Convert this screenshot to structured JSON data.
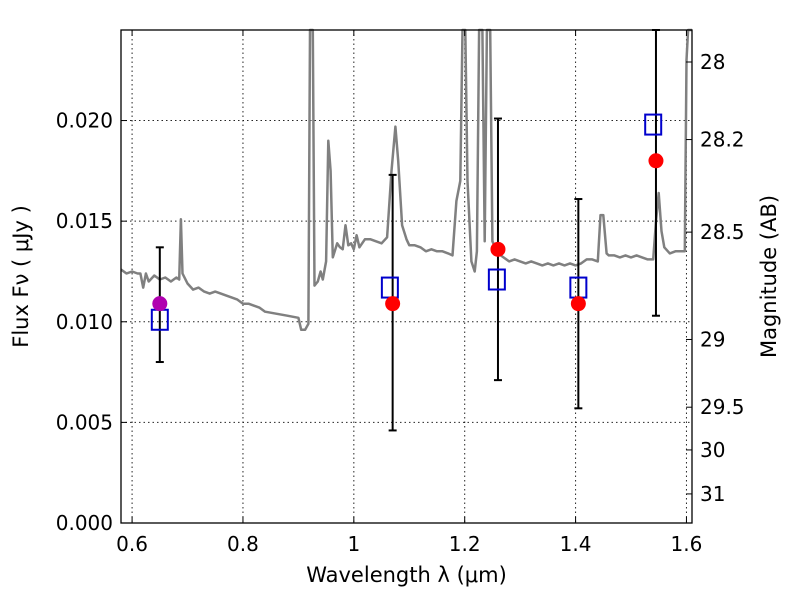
{
  "chart_data": {
    "type": "scatter",
    "title": "",
    "xlabel": "Wavelength  λ (μm)",
    "ylabel": "Flux  Fν  ( μJy )",
    "ylabel_right": "Magnitude (AB)",
    "xlim": [
      0.58,
      1.61
    ],
    "ylim": [
      0.0,
      0.0245
    ],
    "grid": true,
    "xticks": [
      0.6,
      0.8,
      1.0,
      1.2,
      1.4,
      1.6
    ],
    "xtick_labels": [
      "0.6",
      "0.8",
      "1",
      "1.2",
      "1.4",
      "1.6"
    ],
    "yticks": [
      0.0,
      0.005,
      0.01,
      0.015,
      0.02
    ],
    "ytick_labels": [
      "0.000",
      "0.005",
      "0.010",
      "0.015",
      "0.020"
    ],
    "right_ticks": [
      {
        "label": "28",
        "mag": 28.0
      },
      {
        "label": "28.2",
        "mag": 28.2
      },
      {
        "label": "28.5",
        "mag": 28.5
      },
      {
        "label": "29",
        "mag": 29.0
      },
      {
        "label": "29.5",
        "mag": 29.5
      },
      {
        "label": "30",
        "mag": 30.0
      },
      {
        "label": "31",
        "mag": 31.0
      }
    ],
    "series": [
      {
        "kind": "sed-model",
        "color": "#808080",
        "points": [
          [
            0.58,
            0.0126
          ],
          [
            0.59,
            0.0124
          ],
          [
            0.6,
            0.0125
          ],
          [
            0.61,
            0.0124
          ],
          [
            0.615,
            0.0124
          ],
          [
            0.62,
            0.0117
          ],
          [
            0.625,
            0.0124
          ],
          [
            0.63,
            0.012
          ],
          [
            0.64,
            0.0123
          ],
          [
            0.65,
            0.0121
          ],
          [
            0.66,
            0.0122
          ],
          [
            0.67,
            0.012
          ],
          [
            0.68,
            0.0122
          ],
          [
            0.685,
            0.0121
          ],
          [
            0.688,
            0.0151
          ],
          [
            0.691,
            0.0124
          ],
          [
            0.7,
            0.0119
          ],
          [
            0.71,
            0.0116
          ],
          [
            0.72,
            0.0117
          ],
          [
            0.73,
            0.0115
          ],
          [
            0.74,
            0.0114
          ],
          [
            0.75,
            0.0115
          ],
          [
            0.76,
            0.0114
          ],
          [
            0.77,
            0.0113
          ],
          [
            0.78,
            0.0112
          ],
          [
            0.79,
            0.0111
          ],
          [
            0.8,
            0.0109
          ],
          [
            0.81,
            0.0109
          ],
          [
            0.82,
            0.0108
          ],
          [
            0.83,
            0.0107
          ],
          [
            0.84,
            0.0105
          ],
          [
            0.86,
            0.0104
          ],
          [
            0.88,
            0.0103
          ],
          [
            0.9,
            0.0102
          ],
          [
            0.905,
            0.0096
          ],
          [
            0.912,
            0.0096
          ],
          [
            0.918,
            0.0099
          ],
          [
            0.921,
            0.0245
          ],
          [
            0.926,
            0.0245
          ],
          [
            0.929,
            0.0118
          ],
          [
            0.935,
            0.012
          ],
          [
            0.94,
            0.0125
          ],
          [
            0.944,
            0.0121
          ],
          [
            0.95,
            0.013
          ],
          [
            0.954,
            0.019
          ],
          [
            0.958,
            0.0175
          ],
          [
            0.962,
            0.0132
          ],
          [
            0.97,
            0.0139
          ],
          [
            0.975,
            0.0137
          ],
          [
            0.98,
            0.0136
          ],
          [
            0.985,
            0.0148
          ],
          [
            0.99,
            0.0138
          ],
          [
            0.995,
            0.0139
          ],
          [
            1.0,
            0.0136
          ],
          [
            1.005,
            0.0143
          ],
          [
            1.01,
            0.0137
          ],
          [
            1.02,
            0.0141
          ],
          [
            1.03,
            0.0141
          ],
          [
            1.04,
            0.014
          ],
          [
            1.05,
            0.0139
          ],
          [
            1.06,
            0.0142
          ],
          [
            1.068,
            0.0175
          ],
          [
            1.075,
            0.0197
          ],
          [
            1.08,
            0.018
          ],
          [
            1.087,
            0.0148
          ],
          [
            1.095,
            0.0141
          ],
          [
            1.1,
            0.0138
          ],
          [
            1.11,
            0.0138
          ],
          [
            1.12,
            0.0137
          ],
          [
            1.13,
            0.0135
          ],
          [
            1.14,
            0.0136
          ],
          [
            1.15,
            0.0135
          ],
          [
            1.16,
            0.0135
          ],
          [
            1.17,
            0.0134
          ],
          [
            1.178,
            0.0133
          ],
          [
            1.185,
            0.016
          ],
          [
            1.192,
            0.017
          ],
          [
            1.196,
            0.0245
          ],
          [
            1.201,
            0.0245
          ],
          [
            1.205,
            0.017
          ],
          [
            1.212,
            0.013
          ],
          [
            1.218,
            0.0125
          ],
          [
            1.222,
            0.0135
          ],
          [
            1.226,
            0.0245
          ],
          [
            1.232,
            0.0245
          ],
          [
            1.236,
            0.014
          ],
          [
            1.24,
            0.0245
          ],
          [
            1.246,
            0.0245
          ],
          [
            1.25,
            0.014
          ],
          [
            1.26,
            0.0134
          ],
          [
            1.27,
            0.0132
          ],
          [
            1.28,
            0.013
          ],
          [
            1.29,
            0.0131
          ],
          [
            1.3,
            0.013
          ],
          [
            1.31,
            0.0129
          ],
          [
            1.32,
            0.013
          ],
          [
            1.33,
            0.0129
          ],
          [
            1.34,
            0.0128
          ],
          [
            1.35,
            0.0129
          ],
          [
            1.36,
            0.0128
          ],
          [
            1.37,
            0.0129
          ],
          [
            1.38,
            0.0128
          ],
          [
            1.39,
            0.0129
          ],
          [
            1.4,
            0.0128
          ],
          [
            1.41,
            0.0129
          ],
          [
            1.42,
            0.0131
          ],
          [
            1.43,
            0.0131
          ],
          [
            1.44,
            0.013
          ],
          [
            1.445,
            0.0153
          ],
          [
            1.45,
            0.0153
          ],
          [
            1.456,
            0.0134
          ],
          [
            1.46,
            0.0133
          ],
          [
            1.47,
            0.0133
          ],
          [
            1.48,
            0.0132
          ],
          [
            1.49,
            0.0133
          ],
          [
            1.5,
            0.0132
          ],
          [
            1.51,
            0.0133
          ],
          [
            1.52,
            0.0132
          ],
          [
            1.53,
            0.0131
          ],
          [
            1.54,
            0.0131
          ],
          [
            1.545,
            0.015
          ],
          [
            1.55,
            0.0164
          ],
          [
            1.555,
            0.0145
          ],
          [
            1.56,
            0.0137
          ],
          [
            1.57,
            0.0134
          ],
          [
            1.58,
            0.0135
          ],
          [
            1.59,
            0.0135
          ],
          [
            1.597,
            0.0135
          ],
          [
            1.6,
            0.023
          ],
          [
            1.603,
            0.0245
          ],
          [
            1.61,
            0.0245
          ]
        ]
      },
      {
        "kind": "model-photometry",
        "marker": "square",
        "color": "#0000cc",
        "x": [
          0.65,
          1.065,
          1.258,
          1.405,
          1.54
        ],
        "y": [
          0.0101,
          0.0117,
          0.0121,
          0.0117,
          0.0198
        ]
      },
      {
        "kind": "observed-photometry",
        "marker": "circle",
        "colors": [
          "#b000b0",
          "#ff0000",
          "#ff0000",
          "#ff0000",
          "#ff0000"
        ],
        "x": [
          0.65,
          1.07,
          1.26,
          1.405,
          1.545
        ],
        "y": [
          0.0109,
          0.0109,
          0.0136,
          0.0109,
          0.018
        ],
        "yerr_low": [
          0.008,
          0.0046,
          0.0071,
          0.0057,
          0.0103
        ],
        "yerr_high": [
          0.0137,
          0.0173,
          0.0201,
          0.0161,
          0.0245
        ]
      }
    ]
  }
}
